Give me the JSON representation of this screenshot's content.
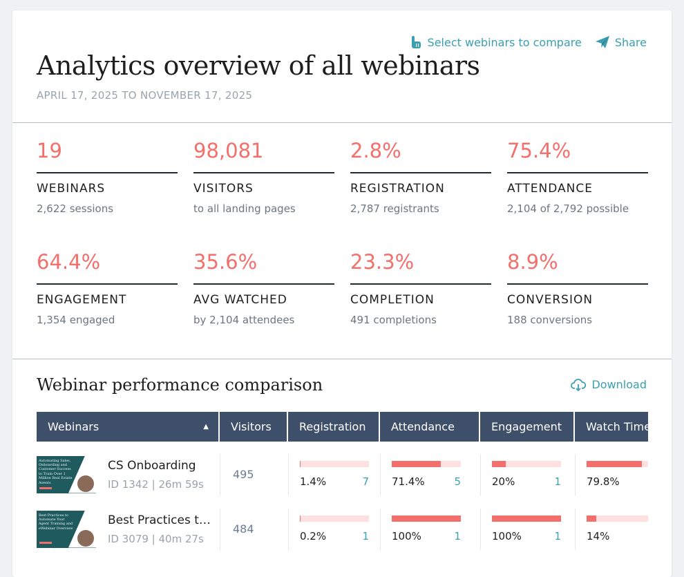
{
  "header": {
    "select_compare": "Select webinars to compare",
    "share": "Share",
    "title": "Analytics overview of all webinars",
    "date_range": "APRIL 17, 2025 TO NOVEMBER 17, 2025"
  },
  "stats": [
    {
      "value": "19",
      "label": "WEBINARS",
      "sub": "2,622 sessions"
    },
    {
      "value": "98,081",
      "label": "VISITORS",
      "sub": "to all landing pages"
    },
    {
      "value": "2.8%",
      "label": "REGISTRATION",
      "sub": "2,787 registrants"
    },
    {
      "value": "75.4%",
      "label": "ATTENDANCE",
      "sub": "2,104 of 2,792 possible"
    },
    {
      "value": "64.4%",
      "label": "ENGAGEMENT",
      "sub": "1,354 engaged"
    },
    {
      "value": "35.6%",
      "label": "AVG WATCHED",
      "sub": "by 2,104 attendees"
    },
    {
      "value": "23.3%",
      "label": "COMPLETION",
      "sub": "491 completions"
    },
    {
      "value": "8.9%",
      "label": "CONVERSION",
      "sub": "188 conversions"
    }
  ],
  "comparison": {
    "title": "Webinar performance comparison",
    "download": "Download",
    "columns": [
      "Webinars",
      "Visitors",
      "Registration",
      "Attendance",
      "Engagement",
      "Watch Time"
    ],
    "rows": [
      {
        "name": "CS Onboarding",
        "meta": "ID 1342 | 26m 59s",
        "visitors": "495",
        "registration": {
          "pct": "1.4%",
          "count": "7",
          "fill": 1.4
        },
        "attendance": {
          "pct": "71.4%",
          "count": "5",
          "fill": 71.4
        },
        "engagement": {
          "pct": "20%",
          "count": "1",
          "fill": 20
        },
        "watch": {
          "pct": "79.8%",
          "fill": 79.8
        },
        "thumb_text": "Automating Sales, Onboarding and Customer Success to Train Over 1 Million Real Estate Agents"
      },
      {
        "name": "Best Practices t…",
        "meta": "ID 3079 | 40m 27s",
        "visitors": "484",
        "registration": {
          "pct": "0.2%",
          "count": "1",
          "fill": 0.2
        },
        "attendance": {
          "pct": "100%",
          "count": "1",
          "fill": 100
        },
        "engagement": {
          "pct": "100%",
          "count": "1",
          "fill": 100
        },
        "watch": {
          "pct": "14%",
          "fill": 14
        },
        "thumb_text": "Best Practices to Automate Your Agent Training and eWebinar Overview"
      }
    ]
  },
  "colors": {
    "accent": "#3a9fb0",
    "metric": "#f36f6b",
    "header_bg": "#3e4f69"
  }
}
